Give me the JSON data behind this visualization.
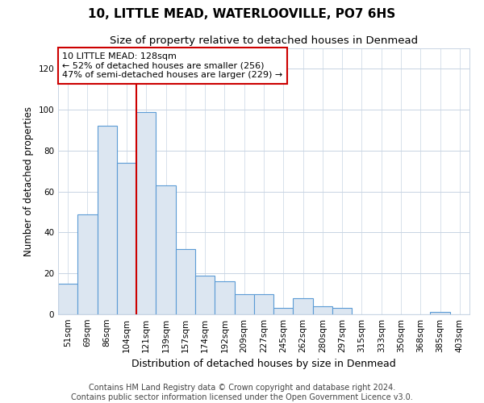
{
  "title": "10, LITTLE MEAD, WATERLOOVILLE, PO7 6HS",
  "subtitle": "Size of property relative to detached houses in Denmead",
  "xlabel": "Distribution of detached houses by size in Denmead",
  "ylabel": "Number of detached properties",
  "footer_line1": "Contains HM Land Registry data © Crown copyright and database right 2024.",
  "footer_line2": "Contains public sector information licensed under the Open Government Licence v3.0.",
  "annotation_line1": "10 LITTLE MEAD: 128sqm",
  "annotation_line2": "← 52% of detached houses are smaller (256)",
  "annotation_line3": "47% of semi-detached houses are larger (229) →",
  "bar_edge_color": "#5b9bd5",
  "bar_face_color": "#dce6f1",
  "redline_color": "#cc0000",
  "categories": [
    "51sqm",
    "69sqm",
    "86sqm",
    "104sqm",
    "121sqm",
    "139sqm",
    "157sqm",
    "174sqm",
    "192sqm",
    "209sqm",
    "227sqm",
    "245sqm",
    "262sqm",
    "280sqm",
    "297sqm",
    "315sqm",
    "333sqm",
    "350sqm",
    "368sqm",
    "385sqm",
    "403sqm"
  ],
  "values": [
    15,
    49,
    92,
    74,
    99,
    63,
    32,
    19,
    16,
    10,
    10,
    3,
    8,
    4,
    3,
    0,
    0,
    0,
    0,
    1,
    0
  ],
  "ylim": [
    0,
    130
  ],
  "yticks": [
    0,
    20,
    40,
    60,
    80,
    100,
    120
  ],
  "grid_color": "#c8d4e3",
  "bg_color": "#ffffff",
  "annotation_box_color": "#ffffff",
  "annotation_box_edge": "#cc0000",
  "redline_bar_index": 4,
  "title_fontsize": 11,
  "subtitle_fontsize": 9.5,
  "axis_label_fontsize": 8.5,
  "tick_fontsize": 7.5,
  "annotation_fontsize": 8,
  "footer_fontsize": 7
}
